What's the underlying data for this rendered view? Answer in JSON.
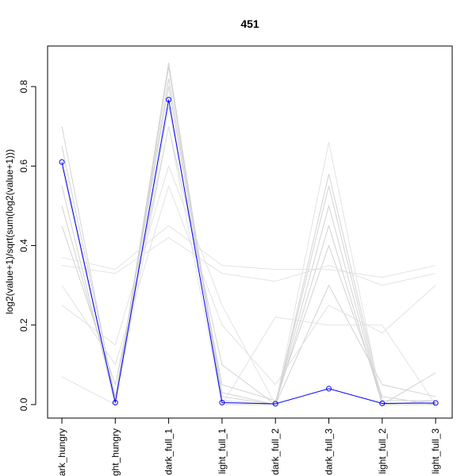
{
  "chart_data": {
    "type": "line",
    "title": "451",
    "y_label": "log2(value+1)/sqrt(sum(log2(value+1)))",
    "categories": [
      "dark_hungry",
      "light_hungry",
      "dark_full_1",
      "light_full_1",
      "dark_full_2",
      "dark_full_3",
      "light_full_2",
      "light_full_3"
    ],
    "ylim": [
      -0.034,
      0.902
    ],
    "yticks": [
      {
        "value": 0,
        "label": "0.0"
      },
      0.2,
      0.4,
      0.6,
      0.8
    ],
    "series": [
      {
        "color": "#d3d3d3",
        "values": [
          0.7,
          0.01,
          0.86,
          0.01,
          0.0,
          0.58,
          0.01,
          0.01
        ]
      },
      {
        "color": "#d3d3d3",
        "values": [
          0.65,
          0.02,
          0.8,
          0.02,
          0.0,
          0.5,
          0.0,
          0.01
        ]
      },
      {
        "color": "#d3d3d3",
        "values": [
          0.55,
          0.0,
          0.75,
          0.05,
          0.01,
          0.4,
          0.02,
          0.0
        ]
      },
      {
        "color": "#d3d3d3",
        "values": [
          0.45,
          0.05,
          0.7,
          0.1,
          0.0,
          0.3,
          0.05,
          0.02
        ]
      },
      {
        "color": "#e3e3e3",
        "values": [
          0.35,
          0.33,
          0.42,
          0.33,
          0.31,
          0.35,
          0.3,
          0.33
        ]
      },
      {
        "color": "#e3e3e3",
        "values": [
          0.37,
          0.34,
          0.45,
          0.35,
          0.34,
          0.34,
          0.32,
          0.35
        ]
      },
      {
        "color": "#e3e3e3",
        "values": [
          0.25,
          0.15,
          0.6,
          0.25,
          0.0,
          0.66,
          0.0,
          0.0
        ]
      },
      {
        "color": "#e3e3e3",
        "values": [
          0.07,
          0.0,
          0.7,
          0.0,
          0.22,
          0.2,
          0.2,
          0.0
        ]
      },
      {
        "color": "#e3e3e3",
        "values": [
          0.3,
          0.1,
          0.55,
          0.2,
          0.05,
          0.25,
          0.18,
          0.3
        ]
      },
      {
        "color": "#d3d3d3",
        "values": [
          0.6,
          0.0,
          0.85,
          0.0,
          0.0,
          0.55,
          0.0,
          0.0
        ]
      },
      {
        "color": "#d3d3d3",
        "values": [
          0.5,
          0.02,
          0.82,
          0.03,
          0.0,
          0.45,
          0.0,
          0.08
        ]
      },
      {
        "color": "#0000ff",
        "markers": true,
        "values": [
          0.61,
          0.005,
          0.767,
          0.005,
          0.002,
          0.04,
          0.003,
          0.004
        ]
      }
    ]
  }
}
